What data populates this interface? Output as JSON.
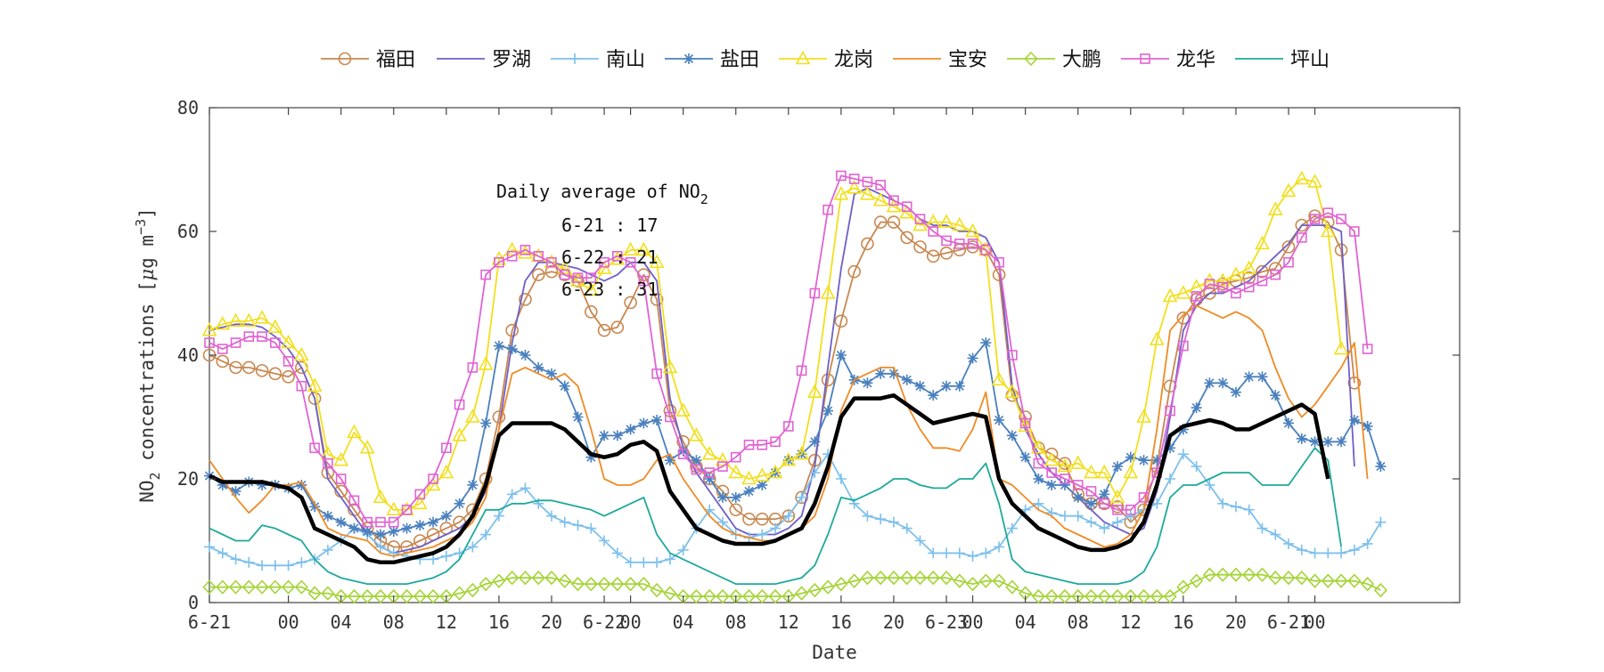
{
  "chart_data": {
    "type": "line",
    "xlabel": "Date",
    "ylabel": {
      "base": "NO",
      "sub": "2",
      "rest": " concentrations [",
      "mu": "μ",
      "unit": "g m",
      "sup": "−3",
      "close": "]"
    },
    "ylim": [
      0,
      80
    ],
    "y_ticks": [
      0,
      20,
      40,
      60,
      80
    ],
    "xlim": [
      0,
      95
    ],
    "x_ticks": [
      {
        "x": 0,
        "label": "6-21"
      },
      {
        "x": 6,
        "label": "00"
      },
      {
        "x": 10,
        "label": "04"
      },
      {
        "x": 14,
        "label": "08"
      },
      {
        "x": 18,
        "label": "12"
      },
      {
        "x": 22,
        "label": "16"
      },
      {
        "x": 26,
        "label": "20"
      },
      {
        "x": 30,
        "label": "6-22"
      },
      {
        "x": 32,
        "label": "00"
      },
      {
        "x": 36,
        "label": "04"
      },
      {
        "x": 40,
        "label": "08"
      },
      {
        "x": 44,
        "label": "12"
      },
      {
        "x": 48,
        "label": "16"
      },
      {
        "x": 52,
        "label": "20"
      },
      {
        "x": 56,
        "label": "6-23"
      },
      {
        "x": 58,
        "label": "00"
      },
      {
        "x": 62,
        "label": "04"
      },
      {
        "x": 66,
        "label": "08"
      },
      {
        "x": 70,
        "label": "12"
      },
      {
        "x": 74,
        "label": "16"
      },
      {
        "x": 78,
        "label": "20"
      },
      {
        "x": 82,
        "label": "6-21"
      },
      {
        "x": 84,
        "label": "00"
      }
    ],
    "grid": false,
    "legend_position": "top",
    "annotation": {
      "title": "Daily average of NO",
      "title_sub": "2",
      "lines": [
        "6-21 : 17",
        "6-22 : 21",
        "6-23 : 31"
      ]
    },
    "x_step": 1,
    "series": [
      {
        "name": "福田",
        "color": "#c88850",
        "marker": "circle",
        "marker_every": 1,
        "values": [
          40,
          39,
          38,
          38,
          37.5,
          37,
          36.5,
          38,
          33,
          21,
          18,
          15,
          12,
          10,
          9,
          9,
          10,
          11,
          12,
          13,
          15,
          20,
          30,
          44,
          49,
          53,
          53.5,
          53,
          52,
          47,
          44,
          44.5,
          48.5,
          53,
          49,
          31,
          26,
          22,
          20,
          18,
          15,
          13.5,
          13.5,
          13.5,
          14,
          17,
          23,
          36,
          45.5,
          53.5,
          58,
          61.5,
          61.5,
          59,
          57.5,
          56,
          56.5,
          57,
          57.5,
          57,
          53,
          33.5,
          30,
          25,
          24,
          22.5,
          17.5,
          16,
          16,
          15.5,
          13,
          15,
          22,
          35,
          46,
          49,
          50,
          51.5,
          52,
          52.5,
          53.5,
          54,
          57.5,
          61,
          62.5,
          61.5,
          57,
          35.5
        ]
      },
      {
        "name": "罗湖",
        "color": "#6f5fc8",
        "marker": "none",
        "values": [
          44,
          44.5,
          45,
          45,
          44.5,
          43,
          41,
          38,
          33,
          20,
          17,
          14,
          11,
          9,
          8,
          8.5,
          9,
          10,
          11,
          12,
          14,
          18,
          28,
          42,
          52,
          55,
          55,
          54.5,
          54,
          53,
          52,
          53,
          55,
          55,
          52,
          33,
          25,
          21,
          18,
          15,
          12,
          11,
          11,
          11,
          12,
          14,
          22,
          38,
          54,
          66,
          67,
          66,
          65,
          64,
          62,
          61,
          61,
          60,
          60,
          59,
          55,
          35,
          28,
          24,
          21,
          19,
          17,
          15,
          13,
          12,
          11,
          12,
          18,
          30,
          44,
          48,
          50,
          50,
          51,
          52,
          54,
          56,
          58,
          61,
          61,
          61,
          60,
          22
        ]
      },
      {
        "name": "南山",
        "color": "#7dc0ec",
        "marker": "plus",
        "marker_every": 1,
        "values": [
          9,
          8,
          7,
          6.5,
          6,
          6,
          6,
          6.5,
          7,
          8.5,
          10,
          12,
          11,
          9,
          8,
          7.5,
          7,
          7,
          7.5,
          8,
          9,
          11,
          14,
          17.5,
          18.5,
          16,
          14,
          13,
          12.5,
          12,
          10,
          8,
          6.5,
          6.5,
          6.5,
          7,
          8.5,
          12,
          15,
          13,
          11,
          10.5,
          11,
          12,
          14,
          17,
          21,
          24,
          20,
          16,
          14,
          13.5,
          13,
          12,
          10,
          8,
          8,
          8,
          7.5,
          8,
          9,
          12,
          15,
          16,
          14.5,
          14,
          14,
          13,
          12,
          13,
          14,
          15,
          16,
          20,
          24,
          22,
          19,
          16,
          15.5,
          15,
          12,
          11,
          9.5,
          8.5,
          8,
          8,
          8,
          8.5,
          9.5,
          13
        ]
      },
      {
        "name": "盐田",
        "color": "#4a80bd",
        "marker": "asterisk",
        "marker_every": 1,
        "values": [
          20.5,
          19,
          18,
          19.5,
          19,
          19,
          18.5,
          19,
          15.5,
          14,
          13,
          12,
          11.5,
          11,
          11.5,
          12,
          12.5,
          13,
          14,
          16,
          19,
          29,
          41.5,
          41,
          40,
          38,
          37,
          35,
          30,
          23.5,
          27,
          27,
          28,
          29,
          29.5,
          23,
          24.5,
          23,
          20,
          17,
          17,
          18,
          19,
          21,
          23,
          24,
          26,
          31,
          40,
          36,
          35.5,
          37,
          37,
          36,
          35,
          33.5,
          35,
          35,
          39.5,
          42,
          29.5,
          27,
          23.5,
          20,
          19,
          19,
          17,
          16,
          17.5,
          22,
          23.5,
          23,
          23,
          25,
          28,
          31.5,
          35.5,
          35.5,
          34,
          36.5,
          36.5,
          33.5,
          29,
          26.5,
          26,
          26,
          26,
          29.5,
          28.5,
          22
        ]
      },
      {
        "name": "龙岗",
        "color": "#f2df1c",
        "marker": "triangle",
        "marker_every": 1,
        "values": [
          44,
          45,
          45.5,
          45.5,
          46,
          44.5,
          42,
          40,
          35,
          24,
          23,
          27.5,
          25,
          17,
          15,
          15,
          16,
          19,
          21,
          27,
          30,
          38.5,
          55.5,
          57,
          56.5,
          56,
          55,
          54,
          52,
          50.5,
          54,
          55.5,
          57,
          57,
          55,
          38,
          31,
          27,
          24,
          23,
          21,
          20,
          20.5,
          21,
          23,
          24,
          34,
          50,
          66,
          67,
          66,
          65,
          64,
          63,
          61,
          61.5,
          61.5,
          61,
          60,
          57,
          36,
          34,
          28.5,
          25,
          23,
          22,
          22.5,
          21,
          21,
          17,
          21,
          30,
          42.5,
          49.5,
          50,
          51,
          52,
          52,
          53,
          54,
          58,
          63.5,
          66.5,
          68.5,
          68,
          60,
          41
        ]
      },
      {
        "name": "宝安",
        "color": "#ef8b25",
        "marker": "none",
        "values": [
          23,
          20,
          17,
          14.5,
          16.5,
          19,
          19,
          19.5,
          16,
          12,
          11,
          10.5,
          10,
          8,
          7.5,
          8,
          8.5,
          9,
          10,
          11,
          13,
          17,
          28,
          37,
          38,
          37,
          36,
          37,
          35,
          28,
          20,
          19,
          19,
          20,
          23,
          24,
          20,
          17,
          14,
          12,
          11,
          10.5,
          10,
          10,
          11,
          12,
          14,
          20,
          31,
          36,
          37,
          38,
          38,
          32,
          28,
          25,
          25,
          24.5,
          28,
          34,
          20,
          19,
          17,
          15,
          14,
          12,
          11,
          10,
          9,
          9.5,
          11,
          15,
          28,
          44,
          46.5,
          48,
          47,
          46,
          47,
          46,
          44,
          38,
          33,
          30,
          32,
          35,
          38,
          42,
          20
        ]
      },
      {
        "name": "大鹏",
        "color": "#a5d437",
        "marker": "diamond",
        "marker_every": 1,
        "values": [
          2.5,
          2.5,
          2.5,
          2.5,
          2.5,
          2.5,
          2.5,
          2.5,
          1.5,
          1.5,
          1,
          1,
          1,
          1,
          1,
          1,
          1,
          1,
          1,
          1.5,
          2,
          3,
          3.5,
          4,
          4,
          4,
          4,
          3.5,
          3,
          3,
          3,
          3,
          3,
          3,
          2,
          1.5,
          1,
          1,
          1,
          1,
          1,
          1,
          1,
          1,
          1,
          1.5,
          2,
          2.5,
          3,
          3.5,
          4,
          4,
          4,
          4,
          4,
          4,
          4,
          3.5,
          3,
          3.5,
          3.5,
          2.5,
          1.5,
          1,
          1,
          1,
          1,
          1,
          1,
          1,
          1,
          1,
          1,
          1,
          2.5,
          3.5,
          4.5,
          4.5,
          4.5,
          4.5,
          4.5,
          4,
          4,
          4,
          3.5,
          3.5,
          3.5,
          3.5,
          3,
          2
        ]
      },
      {
        "name": "龙华",
        "color": "#e064d2",
        "marker": "square",
        "marker_every": 1,
        "values": [
          42,
          41,
          42,
          43,
          43,
          42,
          39,
          35,
          25,
          22.5,
          20,
          16.5,
          13,
          13,
          13,
          15,
          17.5,
          20,
          25,
          32,
          38,
          53,
          55,
          56,
          57,
          56,
          55,
          53,
          52.5,
          52.5,
          55,
          56,
          55,
          52,
          37,
          30,
          24,
          21.5,
          21,
          22,
          23.5,
          25.5,
          25.5,
          26,
          28.5,
          37.5,
          50,
          63.5,
          69,
          68.5,
          68,
          67.5,
          65,
          64,
          62,
          60,
          58.5,
          58,
          58,
          57,
          55,
          40,
          29,
          22.5,
          21,
          20,
          19,
          18,
          16,
          15,
          15,
          17,
          21,
          31,
          41.5,
          49.5,
          51.5,
          51,
          50,
          51,
          52,
          53,
          55,
          59,
          62,
          63,
          62,
          60,
          41
        ]
      },
      {
        "name": "坪山",
        "color": "#1ea99a",
        "marker": "none",
        "values": [
          12,
          11,
          10,
          10,
          12.5,
          12,
          11,
          10,
          7,
          5,
          4,
          3.5,
          3,
          3,
          3,
          3,
          3.5,
          4,
          5,
          7,
          11,
          15,
          15,
          16,
          16,
          16.5,
          16.5,
          16,
          15.5,
          15,
          14,
          15,
          16,
          17,
          11,
          8,
          7,
          6,
          5,
          4,
          3,
          3,
          3,
          3,
          3.5,
          4,
          6,
          11,
          17,
          16.5,
          17.5,
          18.5,
          20,
          20,
          19,
          18.5,
          18.5,
          20,
          20,
          22.5,
          16,
          7,
          5,
          4.5,
          4,
          3.5,
          3,
          3,
          3,
          3,
          3.5,
          5,
          9,
          17,
          19,
          19,
          20,
          21,
          21,
          21,
          19,
          19,
          19,
          22,
          25,
          23,
          9
        ]
      },
      {
        "name": "",
        "color": "#000000",
        "marker": "none",
        "width": 4.5,
        "values": [
          20.5,
          19.5,
          19.5,
          19.5,
          19.5,
          19,
          18.5,
          17,
          12,
          11,
          10,
          9,
          7,
          6.5,
          6.5,
          7,
          7.5,
          8,
          9,
          11,
          14,
          19,
          27,
          29,
          29,
          29,
          29,
          28,
          26,
          24,
          23.5,
          24,
          25.5,
          26,
          24.5,
          18,
          15,
          12,
          11,
          10,
          9.5,
          9.5,
          9.5,
          10,
          11,
          12,
          16,
          22,
          30,
          33,
          33,
          33,
          33.5,
          32,
          30.5,
          29,
          29.5,
          30,
          30.5,
          30,
          20,
          16,
          14,
          12,
          11,
          10,
          9,
          8.5,
          8.5,
          9,
          10,
          13,
          19,
          27,
          28.5,
          29,
          29.5,
          29,
          28,
          28,
          29,
          30,
          31,
          32,
          30.5,
          20
        ]
      }
    ]
  }
}
